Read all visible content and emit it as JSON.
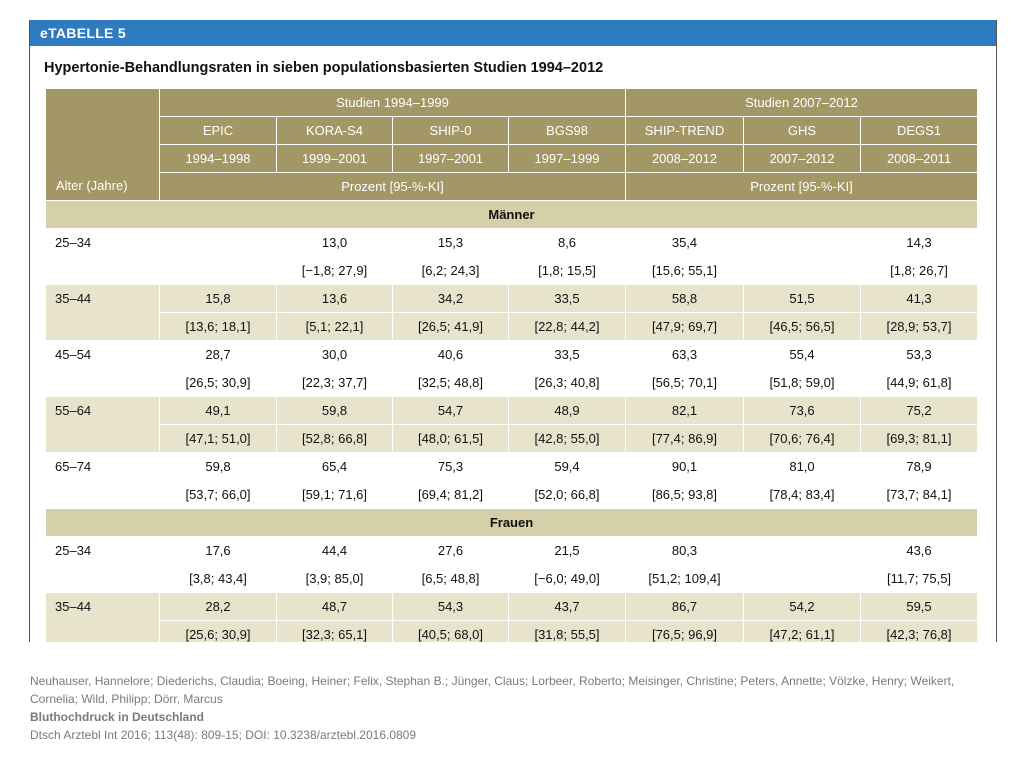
{
  "tag": "eTABELLE 5",
  "title": "Hypertonie-Behandlungsraten in sieben populationsbasierten Studien 1994–2012",
  "age_header": "Alter (Jahre)",
  "group1": {
    "label": "Studien 1994–1999",
    "unit": "Prozent [95-%-KI]"
  },
  "group2": {
    "label": "Studien 2007–2012",
    "unit": "Prozent [95-%-KI]"
  },
  "studies": [
    {
      "name": "EPIC",
      "years": "1994–1998"
    },
    {
      "name": "KORA-S4",
      "years": "1999–2001"
    },
    {
      "name": "SHIP-0",
      "years": "1997–2001"
    },
    {
      "name": "BGS98",
      "years": "1997–1999"
    },
    {
      "name": "SHIP-TREND",
      "years": "2008–2012"
    },
    {
      "name": "GHS",
      "years": "2007–2012"
    },
    {
      "name": "DEGS1",
      "years": "2008–2011"
    }
  ],
  "sections": [
    {
      "label": "Männer",
      "rows": [
        {
          "age": "25–34",
          "values": [
            "",
            "13,0",
            "15,3",
            "8,6",
            "35,4",
            "",
            "14,3"
          ],
          "ci": [
            "",
            "[−1,8; 27,9]",
            "[6,2; 24,3]",
            "[1,8; 15,5]",
            "[15,6; 55,1]",
            "",
            "[1,8; 26,7]"
          ]
        },
        {
          "age": "35–44",
          "values": [
            "15,8",
            "13,6",
            "34,2",
            "33,5",
            "58,8",
            "51,5",
            "41,3"
          ],
          "ci": [
            "[13,6; 18,1]",
            "[5,1; 22,1]",
            "[26,5; 41,9]",
            "[22,8; 44,2]",
            "[47,9; 69,7]",
            "[46,5; 56,5]",
            "[28,9; 53,7]"
          ]
        },
        {
          "age": "45–54",
          "values": [
            "28,7",
            "30,0",
            "40,6",
            "33,5",
            "63,3",
            "55,4",
            "53,3"
          ],
          "ci": [
            "[26,5; 30,9]",
            "[22,3; 37,7]",
            "[32,5; 48,8]",
            "[26,3; 40,8]",
            "[56,5; 70,1]",
            "[51,8; 59,0]",
            "[44,9; 61,8]"
          ]
        },
        {
          "age": "55–64",
          "values": [
            "49,1",
            "59,8",
            "54,7",
            "48,9",
            "82,1",
            "73,6",
            "75,2"
          ],
          "ci": [
            "[47,1; 51,0]",
            "[52,8; 66,8]",
            "[48,0; 61,5]",
            "[42,8; 55,0]",
            "[77,4; 86,9]",
            "[70,6; 76,4]",
            "[69,3; 81,1]"
          ]
        },
        {
          "age": "65–74",
          "values": [
            "59,8",
            "65,4",
            "75,3",
            "59,4",
            "90,1",
            "81,0",
            "78,9"
          ],
          "ci": [
            "[53,7; 66,0]",
            "[59,1; 71,6]",
            "[69,4; 81,2]",
            "[52,0; 66,8]",
            "[86,5; 93,8]",
            "[78,4; 83,4]",
            "[73,7; 84,1]"
          ]
        }
      ]
    },
    {
      "label": "Frauen",
      "rows": [
        {
          "age": "25–34",
          "values": [
            "17,6",
            "44,4",
            "27,6",
            "21,5",
            "80,3",
            "",
            "43,6"
          ],
          "ci": [
            "[3,8; 43,4]",
            "[3,9; 85,0]",
            "[6,5; 48,8]",
            "[−6,0; 49,0]",
            "[51,2; 109,4]",
            "",
            "[11,7; 75,5]"
          ]
        },
        {
          "age": "35–44",
          "values": [
            "28,2",
            "48,7",
            "54,3",
            "43,7",
            "86,7",
            "54,2",
            "59,5"
          ],
          "ci": [
            "[25,6; 30,9]",
            "[32,3; 65,1]",
            "[40,5; 68,0]",
            "[31,8; 55,5]",
            "[76,5; 96,9]",
            "[47,2; 61,1]",
            "[42,3; 76,8]"
          ]
        }
      ]
    }
  ],
  "citation": {
    "authors": "Neuhauser, Hannelore; Diederichs, Claudia; Boeing, Heiner; Felix, Stephan B.; Jünger, Claus; Lorbeer, Roberto; Meisinger, Christine; Peters, Annette; Völzke, Henry; Weikert, Cornelia; Wild, Philipp; Dörr, Marcus",
    "article_title": "Bluthochdruck in Deutschland",
    "reference": "Dtsch Arztebl Int 2016; 113(48): 809-15; DOI: 10.3238/arztebl.2016.0809"
  }
}
